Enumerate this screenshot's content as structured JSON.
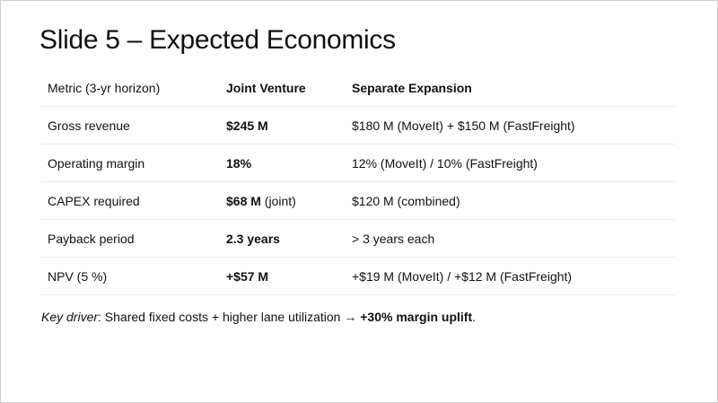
{
  "slide": {
    "title": "Slide 5 – Expected Economics",
    "table": {
      "headers": [
        "Metric (3-yr horizon)",
        "Joint Venture",
        "Separate Expansion"
      ],
      "rows": [
        {
          "metric": "Gross revenue",
          "jv": "$245 M",
          "jv_note": "",
          "separate": "$180 M (MoveIt) + $150 M (FastFreight)"
        },
        {
          "metric": "Operating margin",
          "jv": "18%",
          "jv_note": "",
          "separate": "12% (MoveIt) / 10% (FastFreight)"
        },
        {
          "metric": "CAPEX required",
          "jv": "$68 M",
          "jv_note": " (joint)",
          "separate": "$120 M (combined)"
        },
        {
          "metric": "Payback period",
          "jv": "2.3 years",
          "jv_note": "",
          "separate": "> 3 years each"
        },
        {
          "metric": "NPV (5 %)",
          "jv": "+$57 M",
          "jv_note": "",
          "separate": "+$19 M (MoveIt) / +$12 M (FastFreight)"
        }
      ]
    },
    "note": {
      "label": "Key driver",
      "text": ": Shared fixed costs + higher lane utilization → ",
      "emphasis": "+30% margin uplift",
      "end": "."
    }
  }
}
